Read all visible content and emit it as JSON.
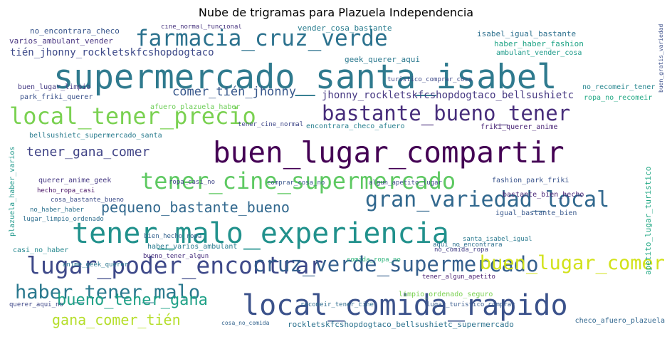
{
  "title": "Nube de trigramas para Plazuela Independencia",
  "words": [
    {
      "text": "supermercado_santa_isabel",
      "color": "#2f7a8e"
    },
    {
      "text": "buen_lugar_compartir",
      "color": "#440154"
    },
    {
      "text": "tener_malo_experiencia",
      "color": "#21918c"
    },
    {
      "text": "local_comida_rapido",
      "color": "#3b528b"
    },
    {
      "text": "tener_cine_supermercado",
      "color": "#5ec962"
    },
    {
      "text": "farmacia_cruz_verde",
      "color": "#2c728e"
    },
    {
      "text": "local_tener_precio",
      "color": "#7ad151"
    },
    {
      "text": "bastante_bueno_tener",
      "color": "#472d7b"
    },
    {
      "text": "gran_variedad_local",
      "color": "#31688e"
    },
    {
      "text": "lugar_poder_encontrar",
      "color": "#3e4989"
    },
    {
      "text": "cruz_verde_supermercado",
      "color": "#355f8d"
    },
    {
      "text": "buen_lugar_comer",
      "color": "#d2e21b"
    },
    {
      "text": "haber_tener_malo",
      "color": "#2a788e"
    },
    {
      "text": "pequeno_bastante_bueno",
      "color": "#31688e"
    },
    {
      "text": "bueno_tener_gana",
      "color": "#1fa187"
    },
    {
      "text": "gana_comer_tién",
      "color": "#b5de2b"
    },
    {
      "text": "tener_gana_comer",
      "color": "#414487"
    },
    {
      "text": "comer_tién_jhonny",
      "color": "#38588c"
    },
    {
      "text": "tién_jhonny_rockletskfcshopdogtaco",
      "color": "#3e4a89"
    },
    {
      "text": "jhonny_rockletskfcshopdogtaco_bellsushietc",
      "color": "#453781"
    },
    {
      "text": "rockletskfcshopdogtaco_bellsushietc_supermercado",
      "color": "#2c728e"
    },
    {
      "text": "no_encontrara_checo",
      "color": "#39568c"
    },
    {
      "text": "varios_ambulant_vender",
      "color": "#46327e"
    },
    {
      "text": "cine_normal_funcional",
      "color": "#46337e"
    },
    {
      "text": "vender_cosa_bastante",
      "color": "#287c8e"
    },
    {
      "text": "isabel_igual_bastante",
      "color": "#2d708e"
    },
    {
      "text": "haber_haber_fashion",
      "color": "#20a486"
    },
    {
      "text": "ambulant_vender_cosa",
      "color": "#1e9b8a"
    },
    {
      "text": "geek_querer_aqui",
      "color": "#2a788e"
    },
    {
      "text": "buen_lugar_limpio",
      "color": "#443a83"
    },
    {
      "text": "park_friki_querer",
      "color": "#3b528b"
    },
    {
      "text": "afuero_plazuela_haber",
      "color": "#6ece58"
    },
    {
      "text": "turistico_comprar_cosa",
      "color": "#3e4989"
    },
    {
      "text": "no_recomeir_tener",
      "color": "#25858e"
    },
    {
      "text": "ropa_no_recomeir",
      "color": "#22a884"
    },
    {
      "text": "bellsushietc_supermercado_santa",
      "color": "#297b8e"
    },
    {
      "text": "tener_cine_normal",
      "color": "#3f4788"
    },
    {
      "text": "encontrara_checo_afuero",
      "color": "#277f8e"
    },
    {
      "text": "friki_querer_anime",
      "color": "#482475"
    },
    {
      "text": "fashion_park_friki",
      "color": "#3a548c"
    },
    {
      "text": "querer_anime_geek",
      "color": "#453882"
    },
    {
      "text": "ropa_casi_no",
      "color": "#404688"
    },
    {
      "text": "comprar_cosa_no",
      "color": "#39558c"
    },
    {
      "text": "algun_apetito_lugar",
      "color": "#3e4c8a"
    },
    {
      "text": "hecho_ropa_casi",
      "color": "#471063"
    },
    {
      "text": "cosa_bastante_bueno",
      "color": "#3d4e8a"
    },
    {
      "text": "bastante_bien_hecho",
      "color": "#482576"
    },
    {
      "text": "igual_bastante_bien",
      "color": "#38588c"
    },
    {
      "text": "no_haber_haber",
      "color": "#2c718e"
    },
    {
      "text": "lugar_limpio_ordenado",
      "color": "#2e6e8e"
    },
    {
      "text": "bien_hecho_ropa",
      "color": "#34618d"
    },
    {
      "text": "haber_varios_ambulant",
      "color": "#297a8e"
    },
    {
      "text": "santa_isabel_igual",
      "color": "#29798e"
    },
    {
      "text": "aqui_no_encontrara",
      "color": "#2d708e"
    },
    {
      "text": "casi_no_haber",
      "color": "#24878e"
    },
    {
      "text": "anime_geek_querer",
      "color": "#2a768e"
    },
    {
      "text": "bueno_tener_algun",
      "color": "#472f7d"
    },
    {
      "text": "no_comida_ropa",
      "color": "#433e85"
    },
    {
      "text": "comida_ropa_no",
      "color": "#2fb47c"
    },
    {
      "text": "tener_algun_apetito",
      "color": "#481d6f"
    },
    {
      "text": "limpio_ordenado_seguro",
      "color": "#7ad151"
    },
    {
      "text": "recomeir_tener_cine",
      "color": "#2f6c8e"
    },
    {
      "text": "lugar_turistico_comprar",
      "color": "#375a8c"
    },
    {
      "text": "querer_aqui_no",
      "color": "#3f4889"
    },
    {
      "text": "cosa_no_comida",
      "color": "#33638d"
    },
    {
      "text": "checo_afuero_plazuela",
      "color": "#31668e"
    },
    {
      "text": "plazuela_haber_varios",
      "color": "#1f988b"
    },
    {
      "text": "apetito_lugar_turistico",
      "color": "#22a884"
    },
    {
      "text": "buen_gratis_variedad",
      "color": "#3c4f8a"
    }
  ]
}
